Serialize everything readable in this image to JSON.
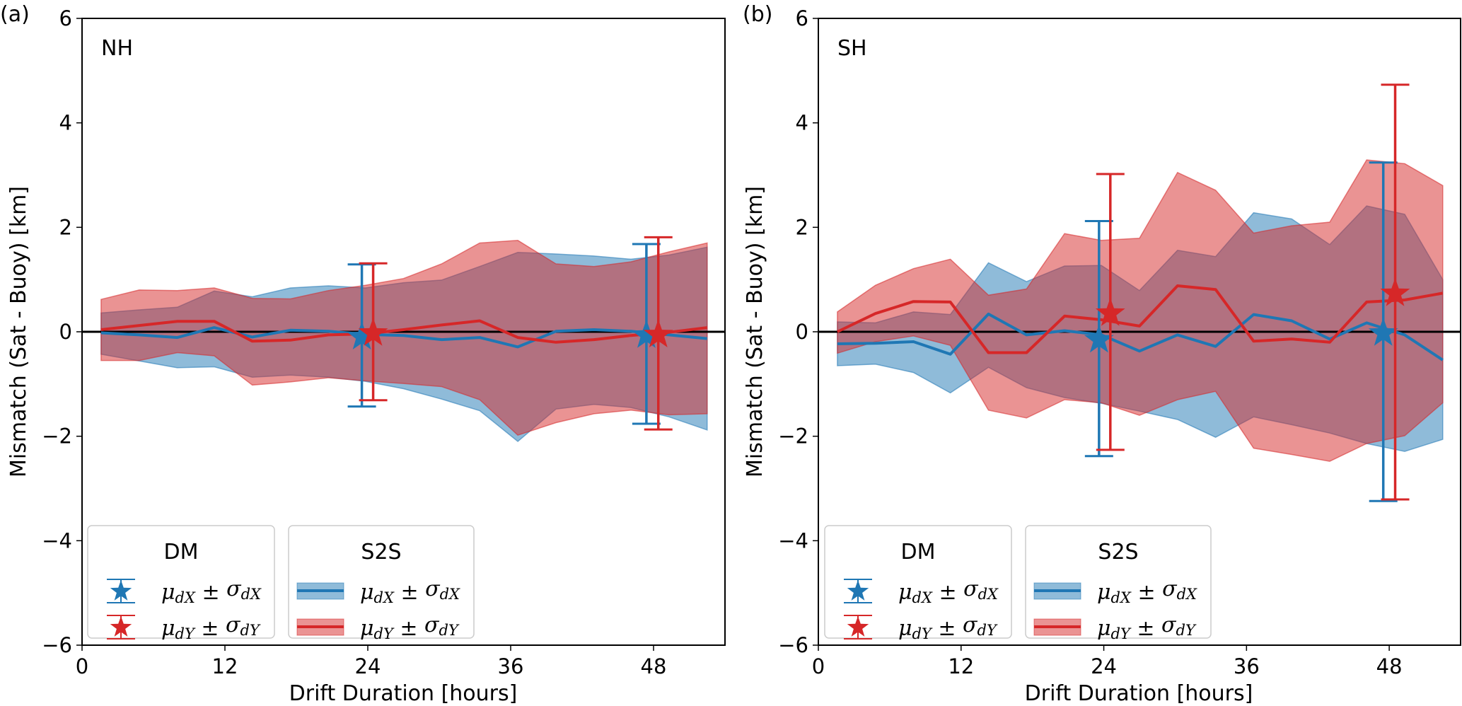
{
  "chart_data": [
    {
      "type": "line",
      "panel_label": "(a)",
      "region_label": "NH",
      "xlabel": "Drift Duration [hours]",
      "ylabel": "Mismatch (Sat - Buoy) [km]",
      "xlim": [
        0,
        54
      ],
      "ylim": [
        -6,
        6
      ],
      "xticks": [
        0,
        12,
        24,
        36,
        48
      ],
      "yticks": [
        -6,
        -4,
        -2,
        0,
        2,
        4,
        6
      ],
      "ytick_labels": [
        "−6",
        "−4",
        "−2",
        "0",
        "2",
        "4",
        "6"
      ],
      "grid": false,
      "reference_line_y": 0,
      "x": [
        1.6,
        4.8,
        8.0,
        11.1,
        14.3,
        17.5,
        20.7,
        23.8,
        27.0,
        30.2,
        33.4,
        36.6,
        39.8,
        43.0,
        46.1,
        49.3,
        52.5
      ],
      "series": [
        {
          "name": "S2S μ_dX ± σ_dX",
          "group": "S2S",
          "color": "#1f77b4",
          "mean": [
            -0.02,
            -0.06,
            -0.11,
            0.08,
            -0.1,
            0.03,
            0.01,
            -0.05,
            -0.07,
            -0.15,
            -0.11,
            -0.29,
            0.01,
            0.04,
            0.01,
            -0.06,
            -0.13
          ],
          "upper": [
            0.36,
            0.42,
            0.47,
            0.78,
            0.67,
            0.84,
            0.88,
            0.84,
            0.94,
            0.99,
            1.25,
            1.52,
            1.49,
            1.45,
            1.39,
            1.47,
            1.62
          ],
          "lower": [
            -0.43,
            -0.56,
            -0.69,
            -0.67,
            -0.87,
            -0.83,
            -0.87,
            -0.95,
            -1.09,
            -1.29,
            -1.51,
            -2.1,
            -1.48,
            -1.39,
            -1.45,
            -1.63,
            -1.88
          ]
        },
        {
          "name": "S2S μ_dY ± σ_dY",
          "group": "S2S",
          "color": "#d62728",
          "mean": [
            0.04,
            0.12,
            0.2,
            0.2,
            -0.18,
            -0.16,
            -0.06,
            -0.04,
            0.04,
            0.13,
            0.21,
            -0.11,
            -0.2,
            -0.15,
            -0.07,
            -0.01,
            0.08
          ],
          "upper": [
            0.62,
            0.8,
            0.79,
            0.84,
            0.64,
            0.63,
            0.79,
            0.89,
            1.02,
            1.3,
            1.7,
            1.75,
            1.3,
            1.25,
            1.34,
            1.53,
            1.7
          ],
          "lower": [
            -0.55,
            -0.55,
            -0.4,
            -0.46,
            -1.02,
            -0.96,
            -0.88,
            -0.94,
            -0.99,
            -1.05,
            -1.3,
            -1.98,
            -1.74,
            -1.57,
            -1.5,
            -1.59,
            -1.57
          ]
        }
      ],
      "dm_points": [
        {
          "name": "DM μ_dX ± σ_dX",
          "color": "#1f77b4",
          "x": 23.5,
          "mean": -0.07,
          "std": 1.36
        },
        {
          "name": "DM μ_dY ± σ_dY",
          "color": "#d62728",
          "x": 24.45,
          "mean": 0.0,
          "std": 1.31
        },
        {
          "name": "DM μ_dX ± σ_dX",
          "color": "#1f77b4",
          "x": 47.4,
          "mean": -0.04,
          "std": 1.72
        },
        {
          "name": "DM μ_dY ± σ_dY",
          "color": "#d62728",
          "x": 48.4,
          "mean": -0.03,
          "std": 1.84
        }
      ],
      "legend_placement": "lower-left"
    },
    {
      "type": "line",
      "panel_label": "(b)",
      "region_label": "SH",
      "xlabel": "Drift Duration [hours]",
      "ylabel": "Mismatch (Sat - Buoy) [km]",
      "xlim": [
        0,
        54
      ],
      "ylim": [
        -6,
        6
      ],
      "xticks": [
        0,
        12,
        24,
        36,
        48
      ],
      "yticks": [
        -6,
        -4,
        -2,
        0,
        2,
        4,
        6
      ],
      "ytick_labels": [
        "−6",
        "−4",
        "−2",
        "0",
        "2",
        "4",
        "6"
      ],
      "grid": false,
      "reference_line_y": 0,
      "x": [
        1.6,
        4.8,
        8.0,
        11.1,
        14.3,
        17.5,
        20.7,
        23.8,
        27.0,
        30.2,
        33.4,
        36.6,
        39.8,
        43.0,
        46.1,
        49.3,
        52.5
      ],
      "series": [
        {
          "name": "S2S μ_dX ± σ_dX",
          "group": "S2S",
          "color": "#1f77b4",
          "mean": [
            -0.23,
            -0.22,
            -0.19,
            -0.43,
            0.34,
            -0.06,
            0.02,
            -0.06,
            -0.37,
            -0.06,
            -0.28,
            0.33,
            0.21,
            -0.14,
            0.17,
            -0.06,
            -0.54
          ],
          "upper": [
            0.19,
            0.17,
            0.38,
            0.33,
            1.32,
            0.96,
            1.26,
            1.27,
            0.79,
            1.56,
            1.44,
            2.28,
            2.16,
            1.67,
            2.41,
            2.25,
            1.0
          ],
          "lower": [
            -0.65,
            -0.62,
            -0.78,
            -1.17,
            -0.68,
            -1.07,
            -1.26,
            -1.37,
            -1.52,
            -1.68,
            -2.02,
            -1.63,
            -1.78,
            -1.94,
            -2.14,
            -2.29,
            -2.06
          ]
        },
        {
          "name": "S2S μ_dY ± σ_dY",
          "group": "S2S",
          "color": "#d62728",
          "mean": [
            0.0,
            0.35,
            0.58,
            0.57,
            -0.4,
            -0.4,
            0.3,
            0.23,
            0.11,
            0.88,
            0.81,
            -0.18,
            -0.14,
            -0.2,
            0.57,
            0.61,
            0.74
          ],
          "upper": [
            0.38,
            0.89,
            1.21,
            1.39,
            0.7,
            0.82,
            1.88,
            1.75,
            1.79,
            3.05,
            2.71,
            1.89,
            2.03,
            2.1,
            3.29,
            3.22,
            2.8
          ],
          "lower": [
            -0.41,
            -0.19,
            -0.08,
            -0.26,
            -1.5,
            -1.65,
            -1.3,
            -1.36,
            -1.6,
            -1.3,
            -1.14,
            -2.23,
            -2.35,
            -2.48,
            -2.14,
            -1.99,
            -1.36
          ]
        }
      ],
      "dm_points": [
        {
          "name": "DM μ_dX ± σ_dX",
          "color": "#1f77b4",
          "x": 23.6,
          "mean": -0.13,
          "std": 2.25
        },
        {
          "name": "DM μ_dY ± σ_dY",
          "color": "#d62728",
          "x": 24.55,
          "mean": 0.38,
          "std": 2.64
        },
        {
          "name": "DM μ_dX ± σ_dX",
          "color": "#1f77b4",
          "x": 47.5,
          "mean": 0.0,
          "std": 3.24
        },
        {
          "name": "DM μ_dY ± σ_dY",
          "color": "#d62728",
          "x": 48.5,
          "mean": 0.76,
          "std": 3.97
        }
      ],
      "legend_placement": "lower-left"
    }
  ],
  "legend": {
    "dm_title": "DM",
    "s2s_title": "S2S",
    "entries": [
      {
        "mu": "μ",
        "sigma": "σ",
        "pm": " ± ",
        "sub": "dX",
        "color": "#1f77b4"
      },
      {
        "mu": "μ",
        "sigma": "σ",
        "pm": " ± ",
        "sub": "dY",
        "color": "#d62728"
      }
    ]
  },
  "colors": {
    "blue": "#1f77b4",
    "red": "#d62728",
    "reference_line": "#000000"
  }
}
